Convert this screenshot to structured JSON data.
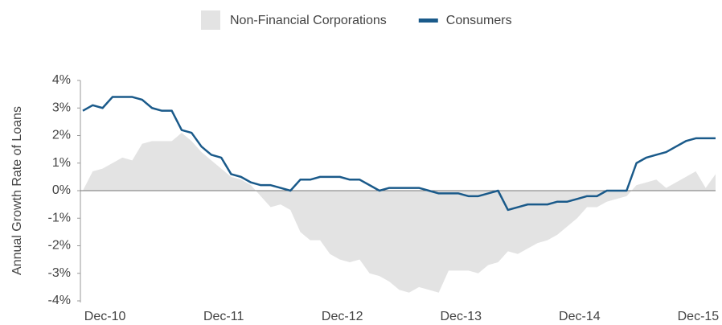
{
  "chart_data": {
    "type": "line",
    "ylabel": "Annual Growth Rate of Loans",
    "categories": [
      null,
      null,
      "Dec-10",
      null,
      null,
      null,
      null,
      null,
      null,
      null,
      null,
      null,
      null,
      null,
      "Dec-11",
      null,
      null,
      null,
      null,
      null,
      null,
      null,
      null,
      null,
      null,
      null,
      "Dec-12",
      null,
      null,
      null,
      null,
      null,
      null,
      null,
      null,
      null,
      null,
      null,
      "Dec-13",
      null,
      null,
      null,
      null,
      null,
      null,
      null,
      null,
      null,
      null,
      null,
      "Dec-14",
      null,
      null,
      null,
      null,
      null,
      null,
      null,
      null,
      null,
      null,
      null,
      "Dec-15",
      null,
      null
    ],
    "series": [
      {
        "name": "Non-Financial Corporations",
        "color": "#e3e3e3",
        "kind": "area",
        "values": [
          0.0,
          0.7,
          0.8,
          1.0,
          1.2,
          1.1,
          1.7,
          1.8,
          1.8,
          1.8,
          2.1,
          1.8,
          1.4,
          1.1,
          0.8,
          0.5,
          0.4,
          0.2,
          -0.2,
          -0.6,
          -0.5,
          -0.7,
          -1.5,
          -1.8,
          -1.8,
          -2.3,
          -2.5,
          -2.6,
          -2.5,
          -3.0,
          -3.1,
          -3.3,
          -3.6,
          -3.7,
          -3.5,
          -3.6,
          -3.7,
          -2.9,
          -2.9,
          -2.9,
          -3.0,
          -2.7,
          -2.6,
          -2.2,
          -2.3,
          -2.1,
          -1.9,
          -1.8,
          -1.6,
          -1.3,
          -1.0,
          -0.6,
          -0.6,
          -0.4,
          -0.3,
          -0.2,
          0.2,
          0.3,
          0.4,
          0.1,
          0.3,
          0.5,
          0.7,
          0.1,
          0.6
        ]
      },
      {
        "name": "Consumers",
        "color": "#1a5a8a",
        "kind": "line",
        "values": [
          2.9,
          3.1,
          3.0,
          3.4,
          3.4,
          3.4,
          3.3,
          3.0,
          2.9,
          2.9,
          2.2,
          2.1,
          1.6,
          1.3,
          1.2,
          0.6,
          0.5,
          0.3,
          0.2,
          0.2,
          0.1,
          0.0,
          0.4,
          0.4,
          0.5,
          0.5,
          0.5,
          0.4,
          0.4,
          0.2,
          0.0,
          0.1,
          0.1,
          0.1,
          0.1,
          0.0,
          -0.1,
          -0.1,
          -0.1,
          -0.2,
          -0.2,
          -0.1,
          0.0,
          -0.7,
          -0.6,
          -0.5,
          -0.5,
          -0.5,
          -0.4,
          -0.4,
          -0.3,
          -0.2,
          -0.2,
          0.0,
          0.0,
          0.0,
          1.0,
          1.2,
          1.3,
          1.4,
          1.6,
          1.8,
          1.9,
          1.9,
          1.9
        ]
      }
    ],
    "ylim": [
      -4,
      4
    ],
    "yticks": [
      {
        "value": -4,
        "label": "-4%"
      },
      {
        "value": -3,
        "label": "-3%"
      },
      {
        "value": -2,
        "label": "-2%"
      },
      {
        "value": -1,
        "label": "-1%"
      },
      {
        "value": 0,
        "label": "0%"
      },
      {
        "value": 1,
        "label": "1%"
      },
      {
        "value": 2,
        "label": "2%"
      },
      {
        "value": 3,
        "label": "3%"
      },
      {
        "value": 4,
        "label": "4%"
      }
    ],
    "legend": "top"
  }
}
